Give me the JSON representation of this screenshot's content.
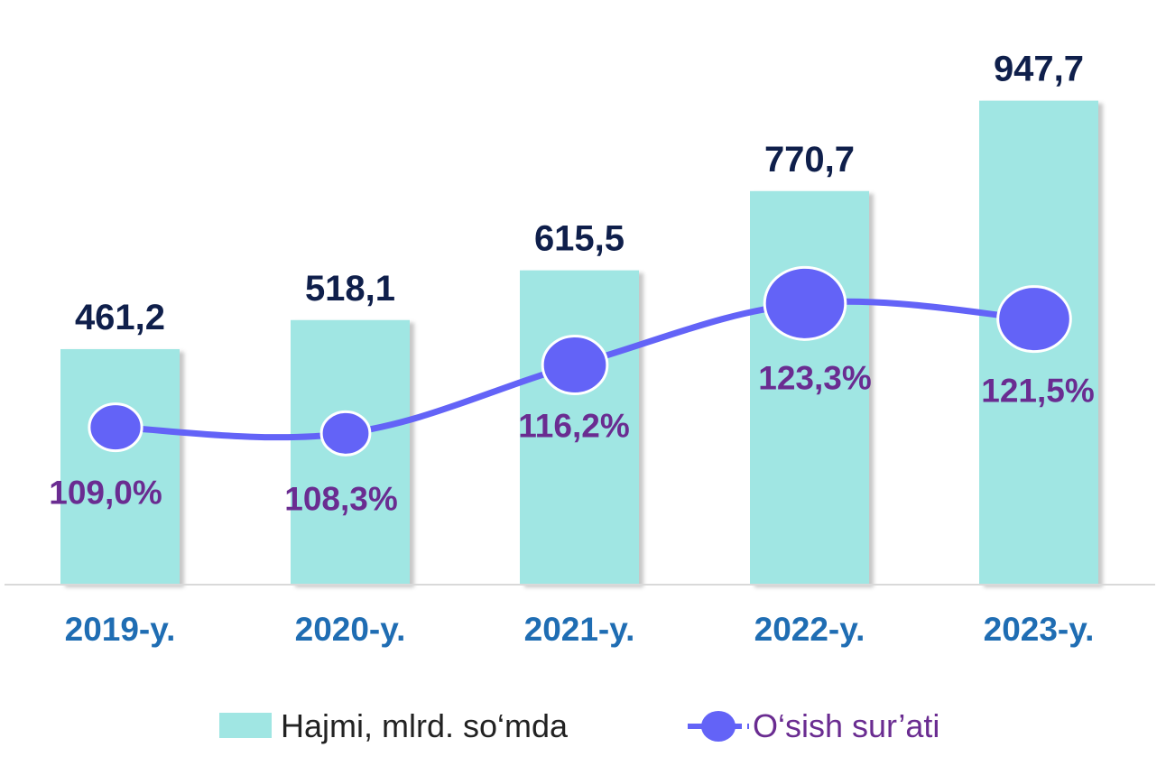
{
  "chart_data": {
    "type": "bar",
    "categories": [
      "2019-y.",
      "2020-y.",
      "2021-y.",
      "2022-y.",
      "2023-y."
    ],
    "series": [
      {
        "name": "Hajmi, mlrd. so‘mda",
        "type": "bar",
        "values": [
          461.2,
          518.1,
          615.5,
          770.7,
          947.7
        ],
        "labels": [
          "461,2",
          "518,1",
          "615,5",
          "770,7",
          "947,7"
        ],
        "color": "#a0e6e3"
      },
      {
        "name": "O‘sish sur’ati",
        "type": "line",
        "values": [
          109.0,
          108.3,
          116.2,
          123.3,
          121.5
        ],
        "labels": [
          "109,0%",
          "108,3%",
          "116,2%",
          "123,3%",
          "121,5%"
        ],
        "color": "#6363f7"
      }
    ],
    "title": "",
    "xlabel": "",
    "ylabel": "",
    "ylim": [
      0,
      1000
    ],
    "grid": false,
    "legend": "bottom",
    "colors": {
      "bar_label": "#0f1f4b",
      "pct_label": "#6a2c91",
      "category": "#1f6db3",
      "legend_bar_text": "#222222",
      "legend_line_text": "#6a2c91",
      "axis": "#d9d9d9"
    }
  }
}
